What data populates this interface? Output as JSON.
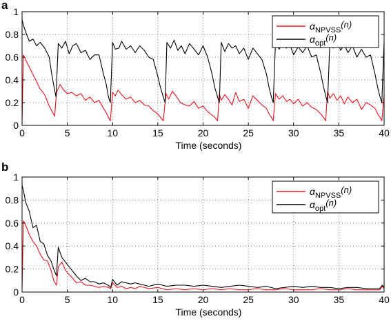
{
  "chart_data": [
    {
      "panel_label": "a",
      "type": "line",
      "xlabel": "Time (seconds)",
      "ylabel": "",
      "xlim": [
        0,
        40
      ],
      "ylim": [
        0,
        1
      ],
      "xticks": [
        0,
        5,
        10,
        15,
        20,
        25,
        30,
        35,
        40
      ],
      "yticks": [
        0,
        0.2,
        0.4,
        0.6,
        0.8,
        1
      ],
      "xtick_labels": [
        "0",
        "5",
        "10",
        "15",
        "20",
        "25",
        "30",
        "35",
        "40"
      ],
      "ytick_labels": [
        "0",
        "0.2",
        "0.4",
        "0.6",
        "0.8",
        "1"
      ],
      "grid": true,
      "legend_position": "top-right",
      "series": [
        {
          "name": "α_NPVSS(n)",
          "legend_main": "α",
          "legend_sub": "NPVSS",
          "legend_suffix": "(n)",
          "color": "#e8141b",
          "x": [
            0,
            0.15,
            0.5,
            1,
            1.5,
            2,
            2.5,
            3,
            3.4,
            3.6,
            3.8,
            4.2,
            4.6,
            5,
            5.5,
            6,
            6.5,
            7,
            7.5,
            8,
            8.5,
            9,
            9.3,
            9.55,
            9.75,
            10,
            10.3,
            10.6,
            11,
            11.5,
            12,
            12.5,
            13,
            13.5,
            14,
            14.5,
            15,
            15.3,
            15.6,
            15.9,
            16.2,
            16.6,
            17,
            17.5,
            18,
            18.5,
            19,
            19.5,
            20,
            20.5,
            21,
            21.3,
            21.6,
            21.8,
            22,
            22.4,
            22.8,
            23.2,
            23.6,
            24,
            24.5,
            25,
            25.5,
            26,
            26.5,
            27,
            27.3,
            27.55,
            27.75,
            28,
            28.4,
            28.8,
            29.2,
            29.6,
            30,
            30.5,
            31,
            31.5,
            32,
            32.5,
            33,
            33.3,
            33.55,
            33.75,
            34,
            34.4,
            34.8,
            35.2,
            35.6,
            36,
            36.5,
            37,
            37.5,
            38,
            38.5,
            39,
            39.3,
            39.55,
            39.75,
            40
          ],
          "y": [
            0.03,
            0.62,
            0.56,
            0.48,
            0.4,
            0.32,
            0.27,
            0.17,
            0.11,
            0.08,
            0.29,
            0.36,
            0.31,
            0.28,
            0.29,
            0.26,
            0.28,
            0.22,
            0.25,
            0.2,
            0.22,
            0.15,
            0.11,
            0.07,
            0.04,
            0.29,
            0.26,
            0.31,
            0.27,
            0.23,
            0.25,
            0.2,
            0.22,
            0.18,
            0.17,
            0.13,
            0.1,
            0.07,
            0.04,
            0.28,
            0.23,
            0.3,
            0.26,
            0.2,
            0.18,
            0.17,
            0.21,
            0.15,
            0.17,
            0.12,
            0.09,
            0.07,
            0.04,
            0.28,
            0.22,
            0.27,
            0.23,
            0.18,
            0.29,
            0.21,
            0.23,
            0.15,
            0.26,
            0.22,
            0.18,
            0.15,
            0.1,
            0.07,
            0.04,
            0.28,
            0.23,
            0.26,
            0.21,
            0.23,
            0.19,
            0.23,
            0.17,
            0.2,
            0.16,
            0.14,
            0.1,
            0.07,
            0.04,
            0.3,
            0.24,
            0.28,
            0.22,
            0.26,
            0.19,
            0.25,
            0.2,
            0.23,
            0.14,
            0.2,
            0.18,
            0.15,
            0.1,
            0.07,
            0.04,
            0.27
          ]
        },
        {
          "name": "α_opt(n)",
          "legend_main": "α",
          "legend_sub": "opt",
          "legend_suffix": "(n)",
          "color": "#000000",
          "x": [
            0,
            0.15,
            0.4,
            0.8,
            1.2,
            1.6,
            2,
            2.5,
            3,
            3.3,
            3.55,
            3.75,
            4,
            4.4,
            4.8,
            5.2,
            5.6,
            6,
            6.5,
            7,
            7.5,
            8,
            8.5,
            9,
            9.3,
            9.55,
            9.75,
            10,
            10.3,
            10.7,
            11,
            11.5,
            12,
            12.5,
            13,
            13.5,
            14,
            14.5,
            15,
            15.3,
            15.6,
            15.8,
            16,
            16.4,
            16.8,
            17.2,
            17.6,
            18,
            18.5,
            19,
            19.5,
            20,
            20.5,
            21,
            21.3,
            21.6,
            21.8,
            22,
            22.4,
            22.8,
            23.2,
            23.6,
            24,
            24.5,
            25,
            25.5,
            26,
            26.5,
            27,
            27.3,
            27.55,
            27.75,
            28,
            28.4,
            28.8,
            29.2,
            29.6,
            30,
            30.5,
            31,
            31.5,
            32,
            32.5,
            33,
            33.3,
            33.55,
            33.75,
            34,
            34.4,
            34.8,
            35.2,
            35.6,
            36,
            36.5,
            37,
            37.5,
            38,
            38.5,
            39,
            39.3,
            39.55,
            39.75,
            40
          ],
          "y": [
            0.93,
            0.88,
            0.82,
            0.74,
            0.76,
            0.7,
            0.73,
            0.68,
            0.6,
            0.44,
            0.33,
            0.25,
            0.72,
            0.68,
            0.74,
            0.63,
            0.7,
            0.72,
            0.64,
            0.66,
            0.58,
            0.62,
            0.62,
            0.45,
            0.36,
            0.25,
            0.2,
            0.73,
            0.67,
            0.68,
            0.74,
            0.67,
            0.7,
            0.64,
            0.7,
            0.66,
            0.6,
            0.58,
            0.43,
            0.33,
            0.25,
            0.2,
            0.73,
            0.68,
            0.75,
            0.66,
            0.7,
            0.63,
            0.72,
            0.67,
            0.62,
            0.7,
            0.6,
            0.45,
            0.33,
            0.25,
            0.2,
            0.73,
            0.65,
            0.72,
            0.68,
            0.7,
            0.63,
            0.68,
            0.58,
            0.68,
            0.63,
            0.58,
            0.45,
            0.33,
            0.25,
            0.2,
            0.73,
            0.67,
            0.72,
            0.68,
            0.71,
            0.62,
            0.69,
            0.64,
            0.7,
            0.6,
            0.62,
            0.46,
            0.34,
            0.26,
            0.2,
            0.73,
            0.68,
            0.74,
            0.66,
            0.71,
            0.64,
            0.7,
            0.6,
            0.67,
            0.6,
            0.62,
            0.45,
            0.33,
            0.25,
            0.2,
            0.74
          ]
        }
      ]
    },
    {
      "panel_label": "b",
      "type": "line",
      "xlabel": "Time (seconds)",
      "ylabel": "",
      "xlim": [
        0,
        40
      ],
      "ylim": [
        0,
        1
      ],
      "xticks": [
        0,
        5,
        10,
        15,
        20,
        25,
        30,
        35,
        40
      ],
      "yticks": [
        0,
        0.2,
        0.4,
        0.6,
        0.8,
        1
      ],
      "xtick_labels": [
        "0",
        "5",
        "10",
        "15",
        "20",
        "25",
        "30",
        "35",
        "40"
      ],
      "ytick_labels": [
        "0",
        "0.2",
        "0.4",
        "0.6",
        "0.8",
        "1"
      ],
      "grid": true,
      "legend_position": "top-right",
      "series": [
        {
          "name": "α_NPVSS(n)",
          "legend_main": "α",
          "legend_sub": "NPVSS",
          "legend_suffix": "(n)",
          "color": "#e8141b",
          "x": [
            0,
            0.15,
            0.4,
            0.8,
            1.2,
            1.6,
            2,
            2.4,
            2.8,
            3.2,
            3.5,
            3.8,
            4,
            4.4,
            4.8,
            5.2,
            5.6,
            6,
            6.5,
            7,
            7.5,
            8,
            8.5,
            9,
            9.5,
            9.8,
            10,
            10.5,
            11,
            11.5,
            12,
            12.5,
            13,
            14,
            15,
            16,
            17,
            18,
            19,
            20,
            21,
            22,
            23,
            24,
            25,
            26,
            27,
            28,
            29,
            30,
            31,
            32,
            33,
            34,
            35,
            36,
            37,
            38,
            39,
            39.5,
            39.8,
            40
          ],
          "y": [
            0.03,
            0.62,
            0.58,
            0.5,
            0.44,
            0.4,
            0.33,
            0.28,
            0.27,
            0.19,
            0.1,
            0.06,
            0.22,
            0.26,
            0.19,
            0.15,
            0.12,
            0.08,
            0.09,
            0.06,
            0.06,
            0.05,
            0.04,
            0.05,
            0.04,
            0.03,
            0.08,
            0.04,
            0.05,
            0.03,
            0.04,
            0.03,
            0.05,
            0.03,
            0.04,
            0.02,
            0.03,
            0.02,
            0.03,
            0.02,
            0.03,
            0.02,
            0.03,
            0.02,
            0.02,
            0.03,
            0.02,
            0.02,
            0.03,
            0.02,
            0.02,
            0.02,
            0.03,
            0.02,
            0.02,
            0.03,
            0.02,
            0.02,
            0.02,
            0.02,
            0.05,
            0.03
          ]
        },
        {
          "name": "α_opt(n)",
          "legend_main": "α",
          "legend_sub": "opt",
          "legend_suffix": "(n)",
          "color": "#000000",
          "x": [
            0,
            0.15,
            0.4,
            0.8,
            1.2,
            1.6,
            2,
            2.4,
            2.8,
            3.2,
            3.5,
            3.8,
            4,
            4.4,
            4.8,
            5.2,
            5.6,
            6,
            6.5,
            7,
            7.5,
            8,
            8.5,
            9,
            9.5,
            9.8,
            10,
            10.5,
            11,
            11.5,
            12,
            12.5,
            13,
            14,
            15,
            16,
            17,
            18,
            19,
            20,
            21,
            22,
            23,
            24,
            25,
            26,
            27,
            28,
            29,
            30,
            31,
            32,
            33,
            34,
            35,
            36,
            37,
            38,
            39,
            39.5,
            39.8,
            40
          ],
          "y": [
            0.93,
            0.88,
            0.78,
            0.7,
            0.56,
            0.58,
            0.44,
            0.42,
            0.32,
            0.27,
            0.2,
            0.14,
            0.39,
            0.3,
            0.26,
            0.22,
            0.18,
            0.14,
            0.1,
            0.12,
            0.09,
            0.09,
            0.07,
            0.08,
            0.06,
            0.04,
            0.11,
            0.06,
            0.09,
            0.08,
            0.07,
            0.08,
            0.07,
            0.05,
            0.07,
            0.05,
            0.06,
            0.06,
            0.05,
            0.06,
            0.05,
            0.04,
            0.05,
            0.06,
            0.05,
            0.04,
            0.05,
            0.03,
            0.04,
            0.05,
            0.04,
            0.05,
            0.04,
            0.04,
            0.03,
            0.04,
            0.04,
            0.03,
            0.03,
            0.03,
            0.06,
            0.04
          ]
        }
      ]
    }
  ]
}
